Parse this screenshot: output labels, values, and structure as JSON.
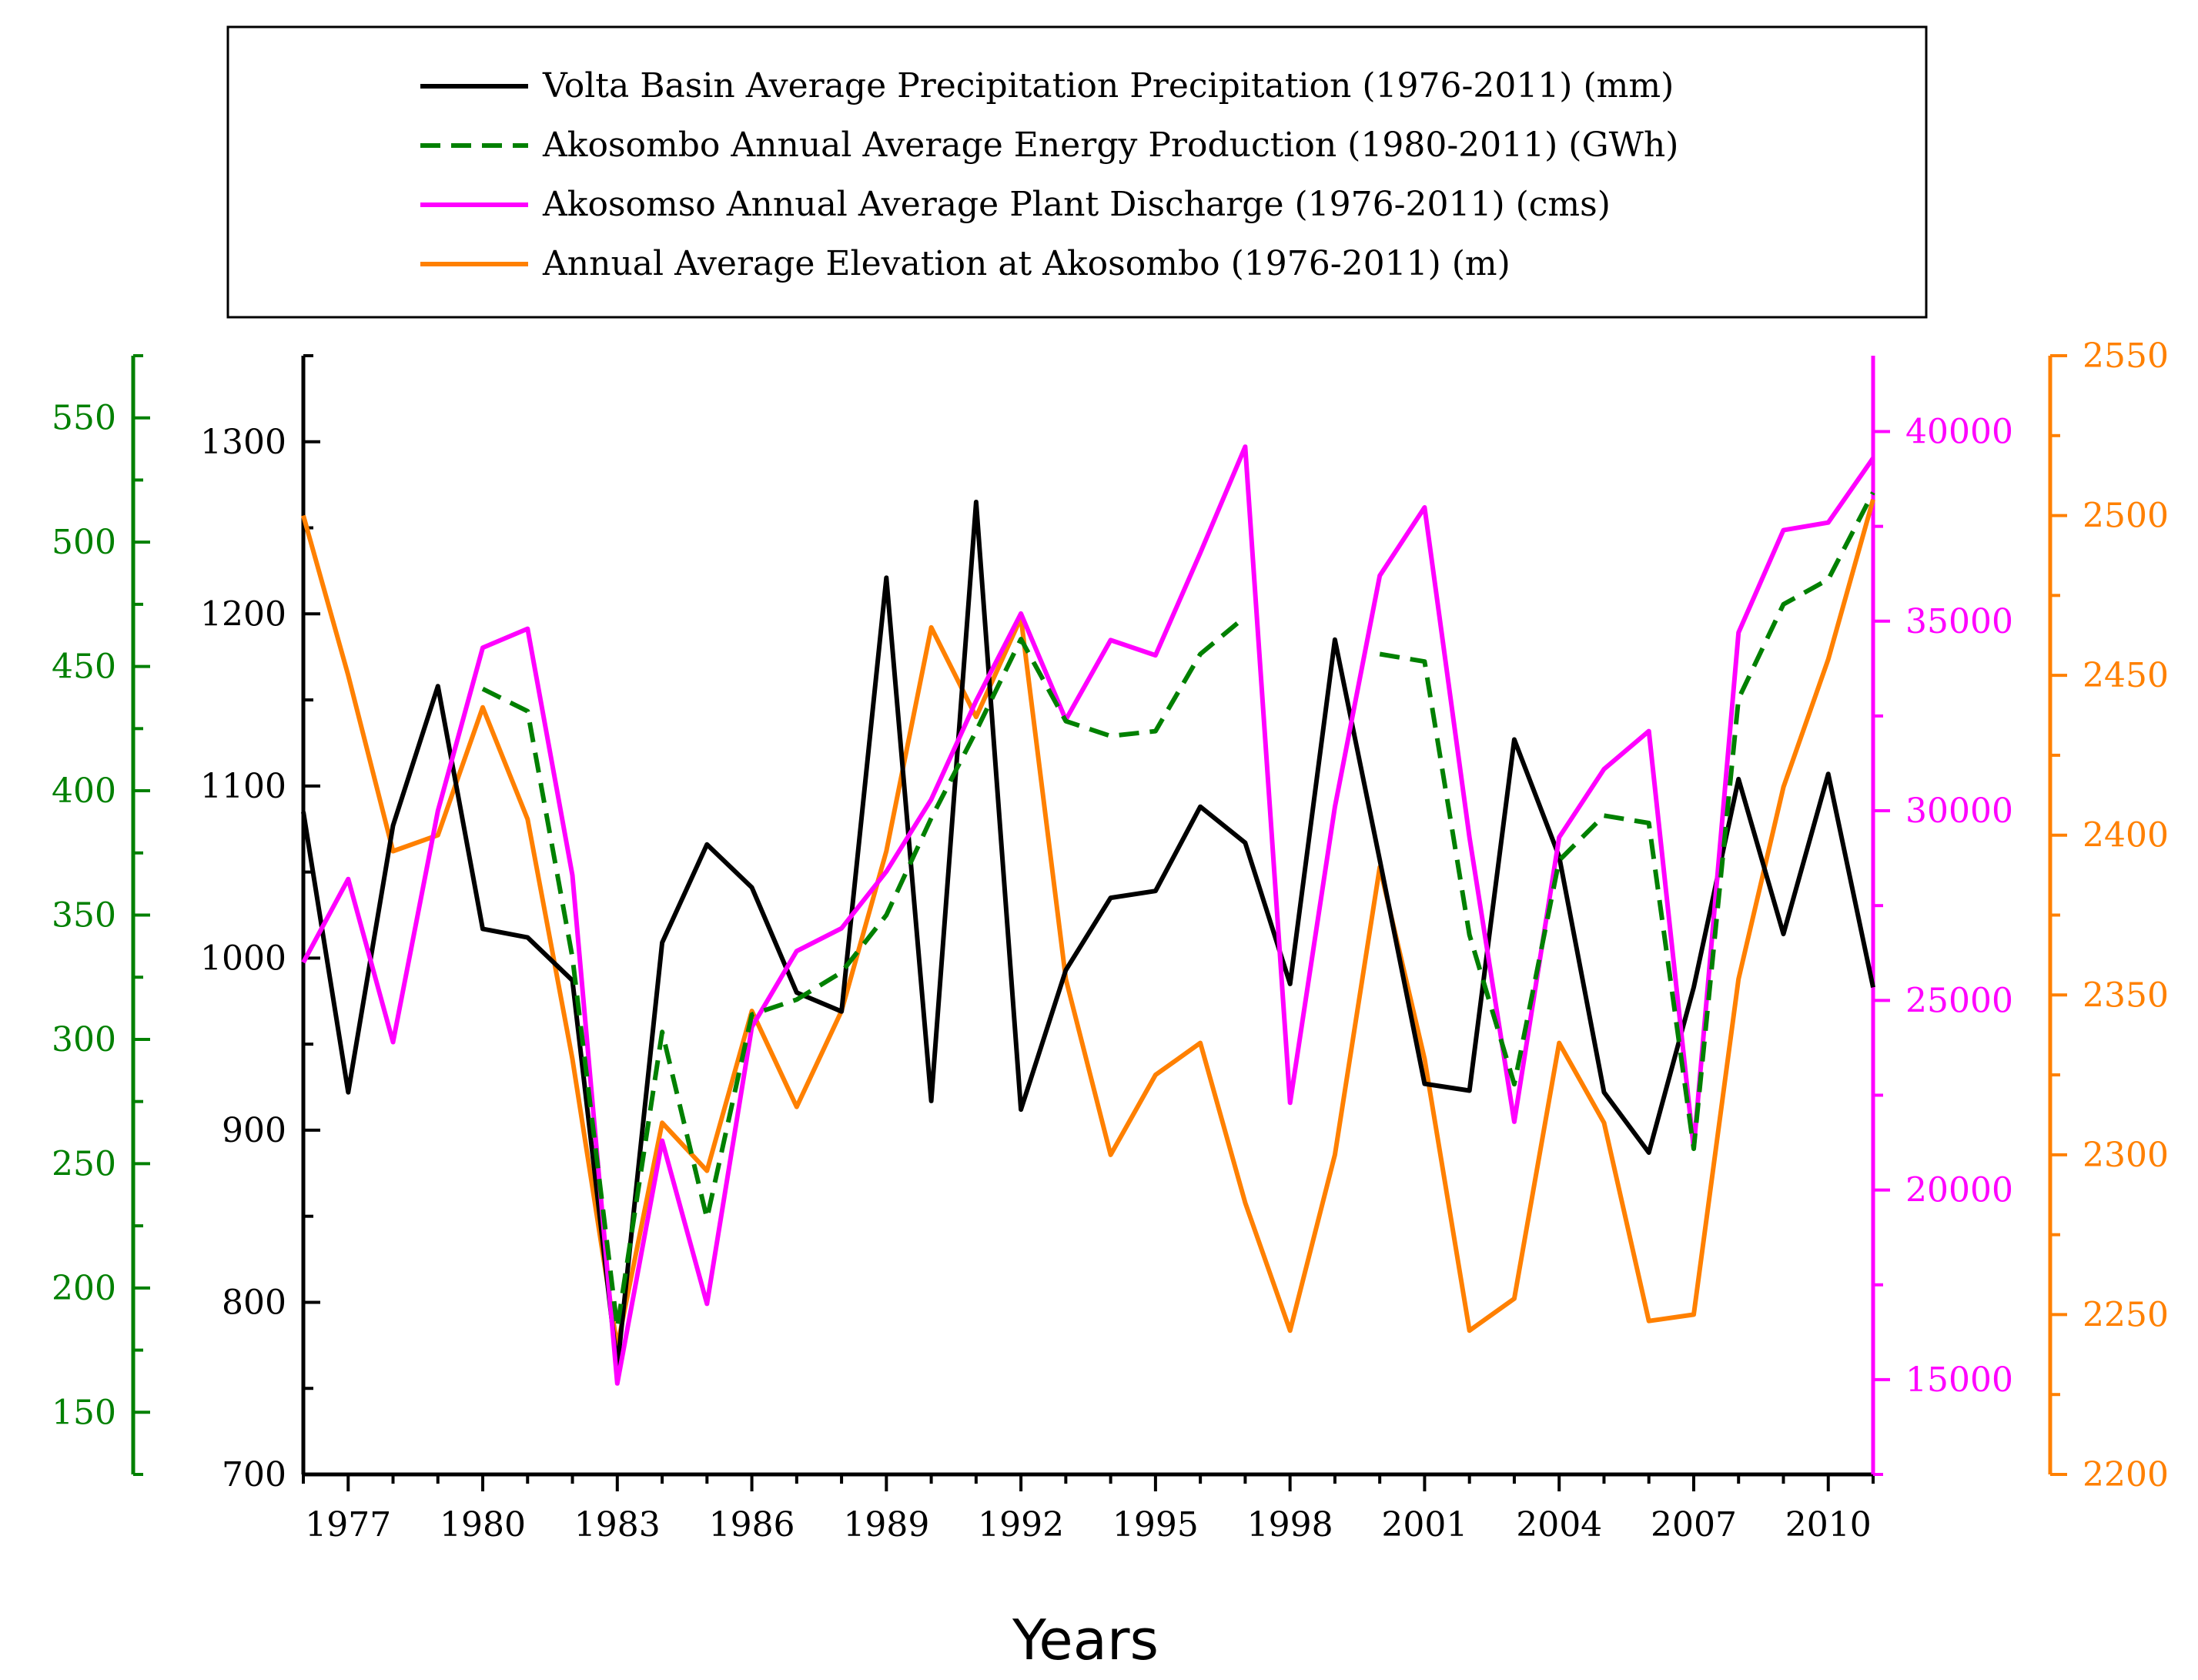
{
  "chart_data": {
    "type": "line",
    "xlabel": "Years",
    "x": [
      1976,
      1977,
      1978,
      1979,
      1980,
      1981,
      1982,
      1983,
      1984,
      1985,
      1986,
      1987,
      1988,
      1989,
      1990,
      1991,
      1992,
      1993,
      1994,
      1995,
      1996,
      1997,
      1998,
      1999,
      2000,
      2001,
      2002,
      2003,
      2004,
      2005,
      2006,
      2007,
      2008,
      2009,
      2010,
      2011
    ],
    "x_tick_labels": [
      "1977",
      "1980",
      "1983",
      "1986",
      "1989",
      "1992",
      "1995",
      "1998",
      "2001",
      "2004",
      "2007",
      "2010"
    ],
    "xlim": [
      1976,
      2011
    ],
    "axes": {
      "green": {
        "ylim": [
          125,
          575
        ],
        "ticks": [
          "150",
          "200",
          "250",
          "300",
          "350",
          "400",
          "450",
          "500",
          "550"
        ],
        "color": "#008000"
      },
      "black": {
        "ylim": [
          700,
          1350
        ],
        "ticks": [
          "700",
          "800",
          "900",
          "1000",
          "1100",
          "1200",
          "1300"
        ],
        "color": "#000000"
      },
      "magenta": {
        "ylim": [
          12500,
          42000
        ],
        "ticks": [
          "15000",
          "20000",
          "25000",
          "30000",
          "35000",
          "40000"
        ],
        "color": "#ff00ff"
      },
      "orange": {
        "ylim": [
          2200,
          2550
        ],
        "ticks": [
          "2200",
          "2250",
          "2300",
          "2350",
          "2400",
          "2450",
          "2500",
          "2550"
        ],
        "color": "#ff8000"
      }
    },
    "series": [
      {
        "name": "Volta Basin Average Precipitation Precipitation (1976-2011) (mm)",
        "axis": "black",
        "color": "#000000",
        "dash": "solid",
        "values": [
          1085,
          922,
          1077,
          1158,
          1017,
          1012,
          987,
          762,
          1009,
          1066,
          1041,
          980,
          969,
          1221,
          917,
          1265,
          912,
          993,
          1035,
          1039,
          1088,
          1067,
          985,
          1185,
          1057,
          927,
          923,
          1127,
          1059,
          922,
          887,
          983,
          1104,
          1014,
          1107,
          983
        ]
      },
      {
        "name": "Akosombo Annual Average Energy Production (1980-2011) (GWh)",
        "axis": "green",
        "color": "#008000",
        "dash": "dashed",
        "values": [
          null,
          null,
          null,
          null,
          441,
          432,
          333,
          184,
          303,
          228,
          310,
          316,
          327,
          350,
          389,
          424,
          461,
          428,
          422,
          424,
          455,
          470,
          null,
          null,
          455,
          452,
          342,
          282,
          372,
          390,
          387,
          256,
          437,
          475,
          485,
          520
        ]
      },
      {
        "name": "Akosomso Annual Average Plant Discharge (1976-2011) (cms)",
        "axis": "magenta",
        "color": "#ff00ff",
        "dash": "solid",
        "values": [
          26000,
          28200,
          23900,
          30000,
          34300,
          34800,
          28300,
          14900,
          21300,
          17000,
          24300,
          26300,
          26900,
          28400,
          30300,
          32900,
          35200,
          32400,
          34500,
          34100,
          36800,
          39600,
          22300,
          30100,
          36200,
          38000,
          29300,
          21800,
          29300,
          31100,
          32100,
          21100,
          34700,
          37400,
          37600,
          39300
        ]
      },
      {
        "name": "Annual Average Elevation at Akosombo (1976-2011) (m)",
        "axis": "orange",
        "color": "#ff8000",
        "dash": "solid",
        "values": [
          2500,
          2450,
          2395,
          2400,
          2440,
          2405,
          2330,
          2240,
          2310,
          2295,
          2345,
          2315,
          2345,
          2395,
          2465,
          2437,
          2468,
          2355,
          2300,
          2325,
          2335,
          2285,
          2245,
          2300,
          2390,
          2330,
          2245,
          2255,
          2335,
          2310,
          2248,
          2250,
          2355,
          2415,
          2455,
          2505
        ]
      }
    ]
  }
}
